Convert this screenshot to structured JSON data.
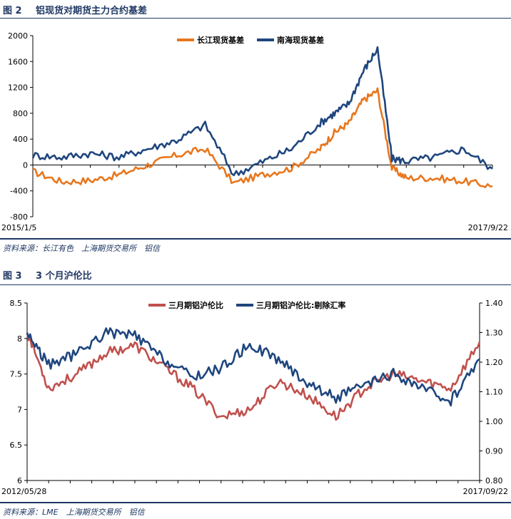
{
  "figures": [
    {
      "label": "图 2",
      "title": "铝现货对期货主力合约基差",
      "source": "资料来源：长江有色　上海期货交易所　铝信",
      "colors": {
        "series1": "#e8771e",
        "series2": "#1f467e"
      }
    },
    {
      "label": "图 3",
      "title": "3 个月沪伦比",
      "source": "资料来源：LME　上海期货交易所　铝信",
      "colors": {
        "series1": "#c0504d",
        "series2": "#1f467e"
      }
    }
  ],
  "chart_data": [
    {
      "type": "line",
      "title": "",
      "x_range": [
        "2015/1/5",
        "2017/9/22"
      ],
      "x_tick_labels": [
        "2015/1/5",
        "2017/9/22"
      ],
      "ylim": [
        -800,
        2000
      ],
      "y_ticks": [
        -800,
        -400,
        0,
        400,
        800,
        1200,
        1600,
        2000
      ],
      "grid": false,
      "legend": "top-center",
      "x": [
        "2015-01",
        "2015-03",
        "2015-05",
        "2015-07",
        "2015-09",
        "2015-11",
        "2016-01",
        "2016-03",
        "2016-05",
        "2016-07",
        "2016-09",
        "2016-10",
        "2016-11",
        "2016-12",
        "2017-01",
        "2017-02",
        "2017-03",
        "2017-05",
        "2017-07",
        "2017-09"
      ],
      "series": [
        {
          "name": "长江现货基差",
          "values": [
            -100,
            -260,
            -240,
            -150,
            0,
            150,
            250,
            -280,
            -150,
            -50,
            250,
            500,
            650,
            1000,
            1150,
            -50,
            -200,
            -200,
            -250,
            -330
          ]
        },
        {
          "name": "南海现货基差",
          "values": [
            150,
            120,
            180,
            120,
            250,
            380,
            620,
            -150,
            50,
            250,
            650,
            800,
            950,
            1450,
            1800,
            100,
            60,
            120,
            250,
            -60
          ]
        }
      ]
    },
    {
      "type": "line",
      "title": "",
      "x_range": [
        "2012/05/28",
        "2017/09/22"
      ],
      "x_tick_labels": [
        "2012/05/28",
        "2017/09/22"
      ],
      "ylim": [
        6,
        8.5
      ],
      "y_ticks": [
        6,
        6.5,
        7,
        7.5,
        8,
        8.5
      ],
      "y2lim": [
        0.8,
        1.4
      ],
      "y2_ticks": [
        "0.80",
        "0.90",
        "1.00",
        "1.10",
        "1.20",
        "1.30",
        "1.40"
      ],
      "grid": false,
      "legend": "top-center",
      "x": [
        "2012-06",
        "2012-09",
        "2013-01",
        "2013-05",
        "2013-09",
        "2014-01",
        "2014-05",
        "2014-09",
        "2015-01",
        "2015-05",
        "2015-09",
        "2016-01",
        "2016-05",
        "2016-09",
        "2017-01",
        "2017-05",
        "2017-09"
      ],
      "series": [
        {
          "name": "三月期铝沪伦比",
          "axis": "left",
          "values": [
            8.1,
            7.3,
            7.5,
            7.8,
            7.9,
            7.6,
            7.3,
            6.9,
            7.0,
            7.4,
            7.2,
            6.9,
            7.3,
            7.5,
            7.4,
            7.3,
            7.95
          ]
        },
        {
          "name": "三月期铝沪伦比:剔除汇率",
          "axis": "right",
          "values": [
            1.3,
            1.19,
            1.23,
            1.3,
            1.29,
            1.21,
            1.15,
            1.18,
            1.26,
            1.21,
            1.13,
            1.08,
            1.12,
            1.16,
            1.11,
            1.07,
            1.21
          ]
        }
      ]
    }
  ]
}
